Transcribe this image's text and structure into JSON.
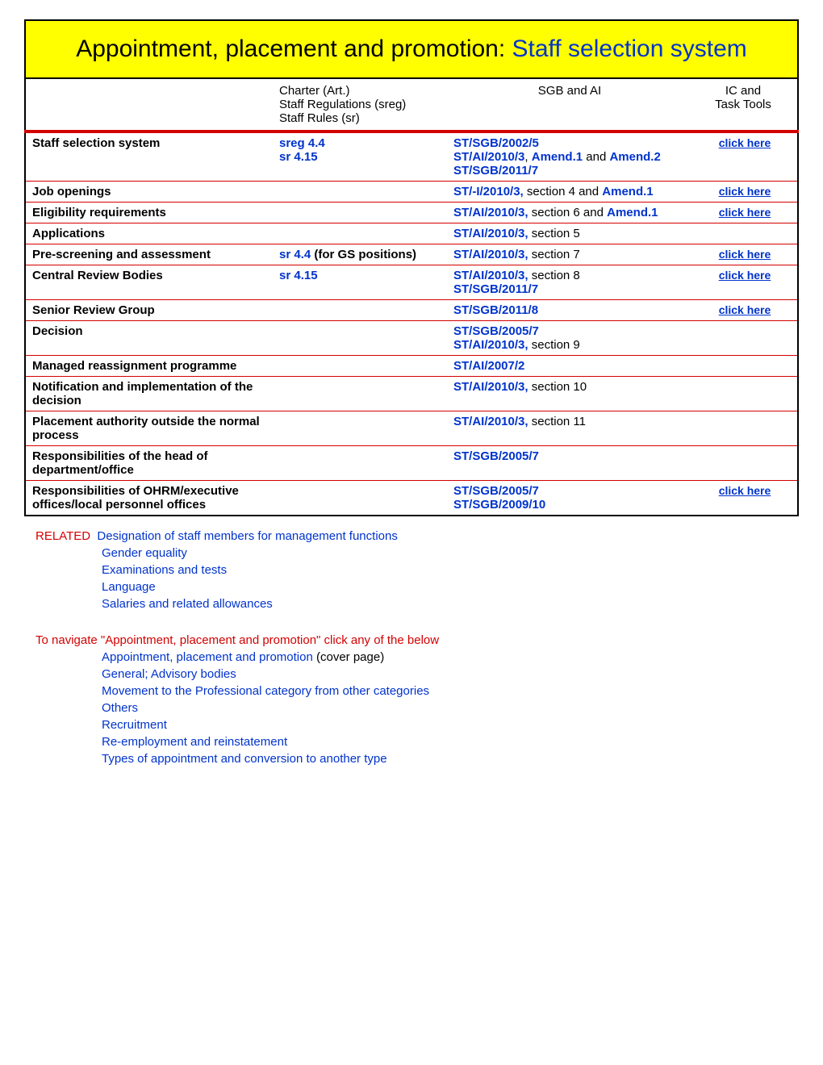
{
  "title": {
    "black": "Appointment, placement and promotion: ",
    "blue": "Staff selection system"
  },
  "headers": {
    "charter_l1": "Charter (Art.)",
    "charter_l2": "Staff Regulations (sreg)",
    "charter_l3": "Staff Rules (sr)",
    "sgb": "SGB and AI",
    "ic_l1": "IC and",
    "ic_l2": "Task Tools"
  },
  "rows": [
    {
      "topic": "Staff selection system",
      "charter_parts": [
        {
          "text": "sreg 4.4",
          "style": "link-blue"
        },
        {
          "text": "<br>",
          "style": ""
        },
        {
          "text": "sr 4.15",
          "style": "link-blue"
        }
      ],
      "sgb_parts": [
        {
          "text": "ST/SGB/2002/5",
          "style": "link-blue"
        },
        {
          "text": "<br>",
          "style": ""
        },
        {
          "text": "ST/AI/2010/3",
          "style": "link-blue"
        },
        {
          "text": ", ",
          "style": "text-black"
        },
        {
          "text": "Amend.1",
          "style": "link-blue"
        },
        {
          "text": " and ",
          "style": "text-black"
        },
        {
          "text": "Amend.2",
          "style": "link-blue"
        },
        {
          "text": "<br>",
          "style": ""
        },
        {
          "text": "ST/SGB/2011/7",
          "style": "link-blue"
        }
      ],
      "ic": "click here"
    },
    {
      "topic": "Job openings",
      "charter_parts": [],
      "sgb_parts": [
        {
          "text": "ST/-I/2010/3,",
          "style": "link-blue"
        },
        {
          "text": " section 4 and ",
          "style": "text-black"
        },
        {
          "text": "Amend.1",
          "style": "link-blue"
        }
      ],
      "ic": "click here"
    },
    {
      "topic": "Eligibility requirements",
      "charter_parts": [],
      "sgb_parts": [
        {
          "text": "ST/AI/2010/3,",
          "style": "link-blue"
        },
        {
          "text": " section 6 and ",
          "style": "text-black"
        },
        {
          "text": "Amend.1",
          "style": "link-blue"
        }
      ],
      "ic": "click here"
    },
    {
      "topic": "Applications",
      "charter_parts": [],
      "sgb_parts": [
        {
          "text": "ST/AI/2010/3,",
          "style": "link-blue"
        },
        {
          "text": " section 5",
          "style": "text-black"
        }
      ],
      "ic": ""
    },
    {
      "topic": "Pre-screening and assessment",
      "charter_parts": [
        {
          "text": "sr 4.4",
          "style": "link-blue"
        },
        {
          "text": " (for GS positions)",
          "style": "bold text-black"
        }
      ],
      "sgb_parts": [
        {
          "text": "ST/AI/2010/3,",
          "style": "link-blue"
        },
        {
          "text": " section 7",
          "style": "text-black"
        }
      ],
      "ic": "click here"
    },
    {
      "topic": "Central Review Bodies",
      "charter_parts": [
        {
          "text": "sr 4.15",
          "style": "link-blue"
        }
      ],
      "sgb_parts": [
        {
          "text": "ST/AI/2010/3,",
          "style": "link-blue"
        },
        {
          "text": " section 8",
          "style": "text-black"
        },
        {
          "text": "<br>",
          "style": ""
        },
        {
          "text": "ST/SGB/2011/7",
          "style": "link-blue"
        }
      ],
      "ic": "click here"
    },
    {
      "topic": "Senior Review Group",
      "charter_parts": [],
      "sgb_parts": [
        {
          "text": "ST/SGB/2011/8",
          "style": "link-blue"
        }
      ],
      "ic": "click here"
    },
    {
      "topic": "Decision",
      "charter_parts": [],
      "sgb_parts": [
        {
          "text": "ST/SGB/2005/7",
          "style": "link-blue"
        },
        {
          "text": "<br>",
          "style": ""
        },
        {
          "text": "ST/AI/2010/3,",
          "style": "link-blue"
        },
        {
          "text": " section 9",
          "style": "text-black"
        }
      ],
      "ic": ""
    },
    {
      "topic": "Managed reassignment programme",
      "charter_parts": [],
      "sgb_parts": [
        {
          "text": "ST/AI/2007/2",
          "style": "link-blue"
        }
      ],
      "ic": ""
    },
    {
      "topic": "Notification and implementation of the decision",
      "charter_parts": [],
      "sgb_parts": [
        {
          "text": "ST/AI/2010/3,",
          "style": "link-blue"
        },
        {
          "text": " section 10",
          "style": "text-black"
        }
      ],
      "ic": ""
    },
    {
      "topic": "Placement authority outside the normal process",
      "charter_parts": [],
      "sgb_parts": [
        {
          "text": "ST/AI/2010/3,",
          "style": "link-blue"
        },
        {
          "text": " section 11",
          "style": "text-black"
        }
      ],
      "ic": ""
    },
    {
      "topic": "Responsibilities of the head of department/office",
      "charter_parts": [],
      "sgb_parts": [
        {
          "text": "ST/SGB/2005/7",
          "style": "link-blue"
        }
      ],
      "ic": ""
    },
    {
      "topic": "Responsibilities of OHRM/executive offices/local personnel offices",
      "charter_parts": [],
      "sgb_parts": [
        {
          "text": "ST/SGB/2005/7",
          "style": "link-blue"
        },
        {
          "text": "<br>",
          "style": ""
        },
        {
          "text": "ST/SGB/2009/10",
          "style": "link-blue"
        }
      ],
      "ic": "click here"
    }
  ],
  "related_label": "RELATED",
  "related": [
    "Designation of staff members for management functions",
    "Gender equality",
    "Examinations and tests",
    "Language",
    "Salaries and related allowances"
  ],
  "nav_note": "To navigate \"Appointment, placement and promotion\" click any of the below",
  "nav": [
    {
      "text": "Appointment, placement and promotion",
      "suffix": " (cover page)"
    },
    {
      "text": "General; Advisory bodies",
      "suffix": ""
    },
    {
      "text": "Movement to the Professional category from other categories",
      "suffix": ""
    },
    {
      "text": "Others",
      "suffix": ""
    },
    {
      "text": "Recruitment",
      "suffix": ""
    },
    {
      "text": "Re-employment and reinstatement",
      "suffix": ""
    },
    {
      "text": "Types of appointment and conversion to another type",
      "suffix": ""
    }
  ]
}
